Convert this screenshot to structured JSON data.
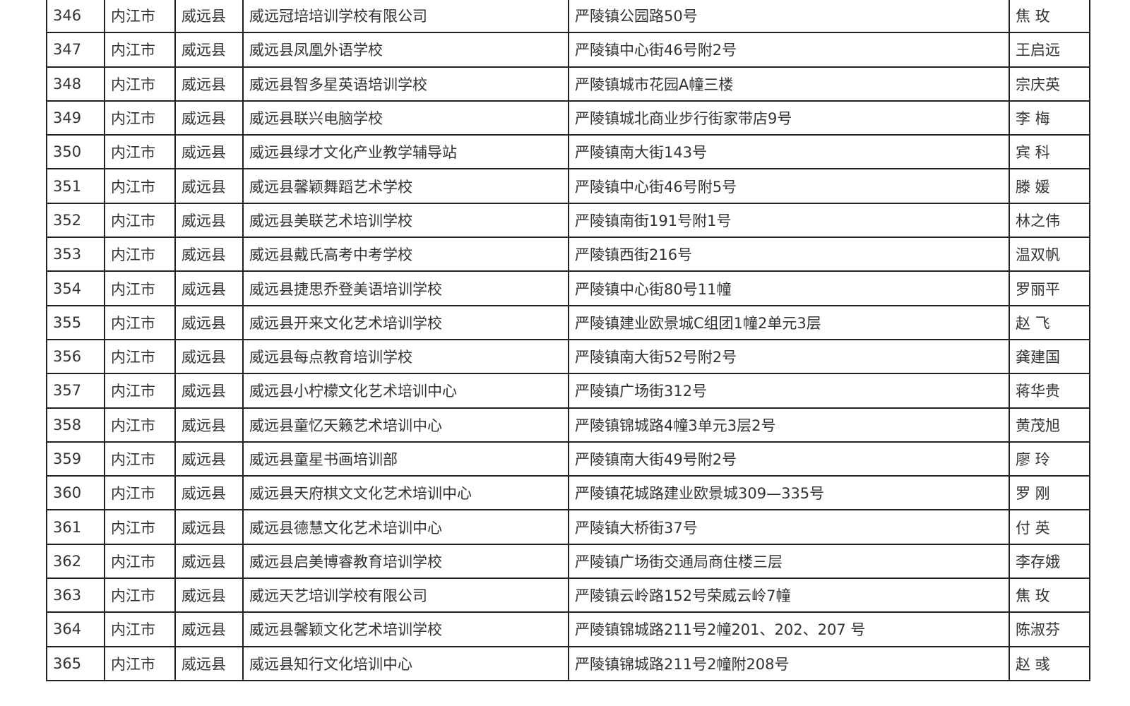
{
  "rows": [
    [
      "346",
      "内江市",
      "威远县",
      "威远冠培培训学校有限公司",
      "严陵镇公园路50号",
      "焦 玫"
    ],
    [
      "347",
      "内江市",
      "威远县",
      "威远县凤凰外语学校",
      "严陵镇中心街46号附2号",
      "王启远"
    ],
    [
      "348",
      "内江市",
      "威远县",
      "威远县智多星英语培训学校",
      "严陵镇城市花园A幢三楼",
      "宗庆英"
    ],
    [
      "349",
      "内江市",
      "威远县",
      "威远县联兴电脑学校",
      "严陵镇城北商业步行街家带店9号",
      "李 梅"
    ],
    [
      "350",
      "内江市",
      "威远县",
      "威远县绿才文化产业教学辅导站",
      "严陵镇南大街143号",
      "宾 科"
    ],
    [
      "351",
      "内江市",
      "威远县",
      "威远县馨颖舞蹈艺术学校",
      "严陵镇中心街46号附5号",
      "滕 媛"
    ],
    [
      "352",
      "内江市",
      "威远县",
      "威远县美联艺术培训学校",
      "严陵镇南街191号附1号",
      "林之伟"
    ],
    [
      "353",
      "内江市",
      "威远县",
      "威远县戴氏高考中考学校",
      "严陵镇西街216号",
      "温双帆"
    ],
    [
      "354",
      "内江市",
      "威远县",
      "威远县捷思乔登美语培训学校",
      "严陵镇中心街80号11幢",
      "罗丽平"
    ],
    [
      "355",
      "内江市",
      "威远县",
      "威远县开来文化艺术培训学校",
      "严陵镇建业欧景城C组团1幢2单元3层",
      "赵 飞"
    ],
    [
      "356",
      "内江市",
      "威远县",
      "威远县每点教育培训学校",
      "严陵镇南大街52号附2号",
      "龚建国"
    ],
    [
      "357",
      "内江市",
      "威远县",
      "威远县小柠檬文化艺术培训中心",
      "严陵镇广场街312号",
      "蒋华贵"
    ],
    [
      "358",
      "内江市",
      "威远县",
      "威远县童忆天籁艺术培训中心",
      "严陵镇锦城路4幢3单元3层2号",
      "黄茂旭"
    ],
    [
      "359",
      "内江市",
      "威远县",
      "威远县童星书画培训部",
      "严陵镇南大街49号附2号",
      "廖 玲"
    ],
    [
      "360",
      "内江市",
      "威远县",
      "威远县天府棋文文化艺术培训中心",
      "严陵镇花城路建业欧景城309—335号",
      "罗 刚"
    ],
    [
      "361",
      "内江市",
      "威远县",
      "威远县德慧文化艺术培训中心",
      "严陵镇大桥街37号",
      "付 英"
    ],
    [
      "362",
      "内江市",
      "威远县",
      "威远县启美博睿教育培训学校",
      "严陵镇广场街交通局商住楼三层",
      "李存娥"
    ],
    [
      "363",
      "内江市",
      "威远县",
      "威远天艺培训学校有限公司",
      "严陵镇云岭路152号荣威云岭7幢",
      "焦 玫"
    ],
    [
      "364",
      "内江市",
      "威远县",
      "威远县馨颖文化艺术培训学校",
      "严陵镇锦城路211号2幢201、202、207 号",
      "陈淑芬"
    ],
    [
      "365",
      "内江市",
      "威远县",
      "威远县知行文化培训中心",
      "严陵镇锦城路211号2幢附208号",
      "赵 彧"
    ]
  ]
}
